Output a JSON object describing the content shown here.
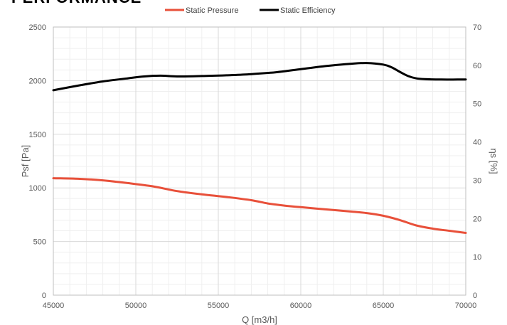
{
  "title": "PERFORMANCE",
  "chart_data": {
    "type": "line",
    "xlabel": "Q [m3/h]",
    "ylabel": "Psf [Pa]",
    "y2label": "ηs [%]",
    "xlim": [
      45000,
      70000
    ],
    "ylim": [
      0,
      2500
    ],
    "y2lim": [
      0,
      70
    ],
    "x_ticks": [
      "45000",
      "50000",
      "55000",
      "60000",
      "65000",
      "70000"
    ],
    "y_ticks": [
      "0",
      "500",
      "1000",
      "1500",
      "2000",
      "2500"
    ],
    "y2_ticks": [
      "0",
      "10",
      "20",
      "30",
      "40",
      "50",
      "60",
      "70"
    ],
    "grid": true,
    "legend_position": "top",
    "series": [
      {
        "name": "Static Pressure",
        "axis": "left",
        "color": "#e8503a",
        "x": [
          45000,
          46500,
          48000,
          49500,
          51000,
          52500,
          54000,
          55500,
          57000,
          58000,
          59000,
          60000,
          61500,
          63000,
          64000,
          65000,
          66000,
          67000,
          68000,
          69000,
          70000
        ],
        "y": [
          1090,
          1085,
          1070,
          1045,
          1015,
          970,
          940,
          915,
          885,
          855,
          835,
          820,
          800,
          780,
          765,
          740,
          700,
          650,
          620,
          600,
          580
        ]
      },
      {
        "name": "Static Efficiency",
        "axis": "right",
        "color": "#000000",
        "x": [
          45000,
          46500,
          48000,
          49500,
          50500,
          51500,
          52500,
          54000,
          55500,
          57000,
          58500,
          60000,
          61500,
          63000,
          64000,
          65000,
          65500,
          66000,
          66500,
          67000,
          67500,
          68500,
          69500,
          70000
        ],
        "y": [
          53.5,
          54.7,
          55.8,
          56.6,
          57.1,
          57.3,
          57.1,
          57.2,
          57.4,
          57.7,
          58.2,
          59.0,
          59.8,
          60.4,
          60.6,
          60.2,
          59.5,
          58.3,
          57.2,
          56.6,
          56.4,
          56.3,
          56.3,
          56.3
        ]
      }
    ]
  }
}
